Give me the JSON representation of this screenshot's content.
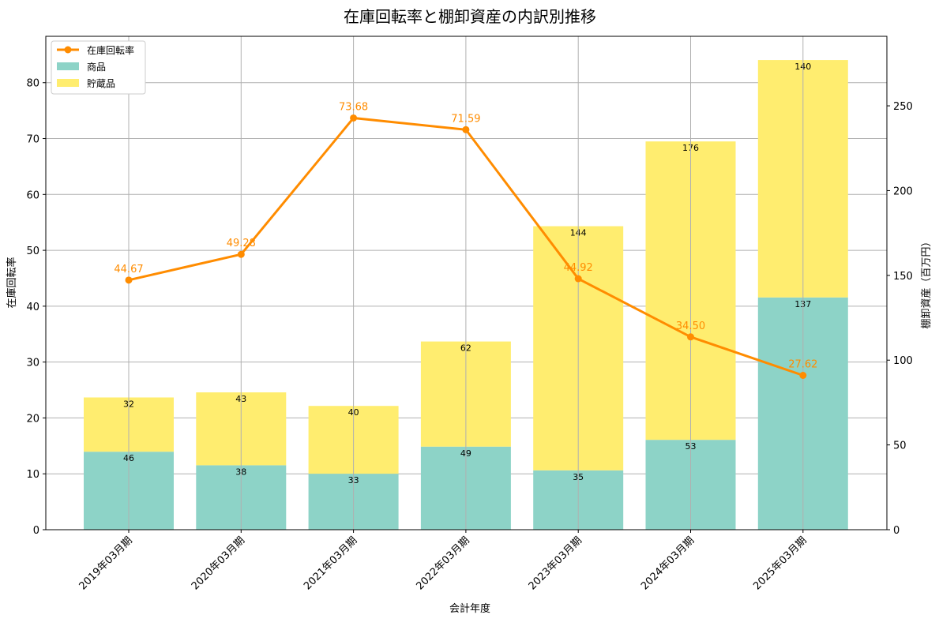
{
  "chart_data": {
    "type": "bar",
    "title": "在庫回転率と棚卸資産の内訳別推移",
    "xlabel": "会計年度",
    "ylabel": "在庫回転率",
    "ylabel_right": "棚卸資産（百万円）",
    "categories": [
      "2019年03月期",
      "2020年03月期",
      "2021年03月期",
      "2022年03月期",
      "2023年03月期",
      "2024年03月期",
      "2025年03月期"
    ],
    "ylim": [
      0,
      88.3
    ],
    "ylim_right": [
      0,
      291
    ],
    "yticks": [
      0,
      10,
      20,
      30,
      40,
      50,
      60,
      70,
      80
    ],
    "yticks_right": [
      0,
      50,
      100,
      150,
      200,
      250
    ],
    "grid": true,
    "legend_position": "top-left",
    "series": [
      {
        "name": "商品",
        "type": "bar",
        "axis": "right",
        "color": "#8dd3c7",
        "values": [
          46,
          38,
          33,
          49,
          35,
          53,
          137
        ]
      },
      {
        "name": "貯蔵品",
        "type": "bar",
        "axis": "right",
        "color": "#ffed6f",
        "values": [
          32,
          43,
          40,
          62,
          144,
          176,
          140
        ]
      },
      {
        "name": "在庫回転率",
        "type": "line",
        "axis": "left",
        "color": "#ff8c00",
        "values": [
          44.67,
          49.28,
          73.68,
          71.59,
          44.92,
          34.5,
          27.62
        ]
      }
    ]
  }
}
